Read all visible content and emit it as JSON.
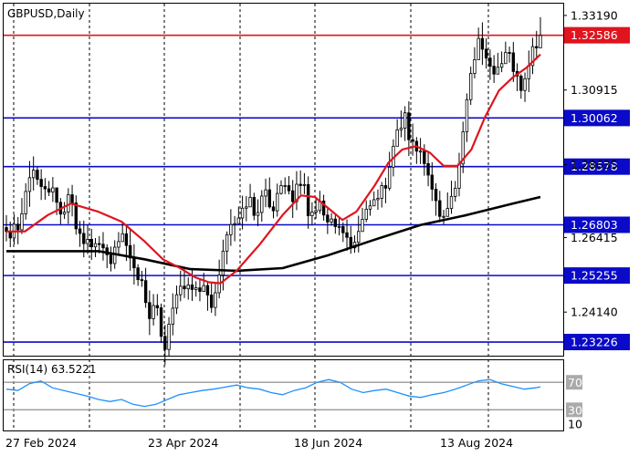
{
  "chart_data": [
    {
      "type": "candlestick",
      "title": "GBPUSD,Daily",
      "ylim": [
        1.2281,
        1.3355
      ],
      "price_ticks": [
        "1.33190",
        "1.30915",
        "1.28635",
        "1.26415",
        "1.24140"
      ],
      "x_labels": [
        "27 Feb 2024",
        "23 Apr 2024",
        "18 Jun 2024",
        "13 Aug 2024"
      ],
      "levels": [
        {
          "value": 1.32586,
          "label": "1.32586",
          "color": "#e0141e"
        },
        {
          "value": 1.30062,
          "label": "1.30062",
          "color": "#0a0ac8"
        },
        {
          "value": 1.28578,
          "label": "1.28578",
          "color": "#0a0ac8"
        },
        {
          "value": 1.26803,
          "label": "1.26803",
          "color": "#0a0ac8"
        },
        {
          "value": 1.25255,
          "label": "1.25255",
          "color": "#0a0ac8"
        },
        {
          "value": 1.23226,
          "label": "1.23226",
          "color": "#0a0ac8"
        }
      ],
      "ma_fast": {
        "color": "#e0141e",
        "points": [
          [
            0,
            1.266
          ],
          [
            8,
            1.266
          ],
          [
            18,
            1.271
          ],
          [
            28,
            1.2745
          ],
          [
            40,
            1.272
          ],
          [
            50,
            1.269
          ],
          [
            60,
            1.263
          ],
          [
            68,
            1.2575
          ],
          [
            75,
            1.255
          ],
          [
            82,
            1.252
          ],
          [
            88,
            1.2505
          ],
          [
            93,
            1.2502
          ],
          [
            100,
            1.254
          ],
          [
            110,
            1.262
          ],
          [
            120,
            1.271
          ],
          [
            128,
            1.277
          ],
          [
            134,
            1.2765
          ],
          [
            140,
            1.273
          ],
          [
            146,
            1.2695
          ],
          [
            152,
            1.272
          ],
          [
            160,
            1.28
          ],
          [
            166,
            1.287
          ],
          [
            172,
            1.291
          ],
          [
            178,
            1.292
          ],
          [
            184,
            1.29
          ],
          [
            190,
            1.286
          ],
          [
            196,
            1.286
          ],
          [
            202,
            1.291
          ],
          [
            208,
            1.301
          ],
          [
            214,
            1.309
          ],
          [
            220,
            1.313
          ],
          [
            226,
            1.316
          ],
          [
            232,
            1.32
          ]
        ]
      },
      "ma_slow": {
        "color": "#000000",
        "points": [
          [
            0,
            1.26
          ],
          [
            20,
            1.26
          ],
          [
            40,
            1.26
          ],
          [
            60,
            1.2575
          ],
          [
            80,
            1.2545
          ],
          [
            100,
            1.254
          ],
          [
            120,
            1.2548
          ],
          [
            140,
            1.2588
          ],
          [
            160,
            1.2635
          ],
          [
            180,
            1.268
          ],
          [
            200,
            1.271
          ],
          [
            220,
            1.2745
          ],
          [
            232,
            1.2765
          ]
        ]
      },
      "candles": [
        [
          1.2672,
          1.266,
          1.271,
          1.263
        ],
        [
          1.266,
          1.264,
          1.269,
          1.2612
        ],
        [
          1.264,
          1.2682,
          1.2712,
          1.262
        ],
        [
          1.2682,
          1.2665,
          1.2704,
          1.2621
        ],
        [
          1.2665,
          1.2714,
          1.2762,
          1.2652
        ],
        [
          1.2714,
          1.2782,
          1.2807,
          1.2696
        ],
        [
          1.2782,
          1.2824,
          1.2875,
          1.2735
        ],
        [
          1.2824,
          1.2847,
          1.2889,
          1.2785
        ],
        [
          1.2847,
          1.2819,
          1.2857,
          1.2802
        ],
        [
          1.2819,
          1.2797,
          1.285,
          1.2756
        ],
        [
          1.2797,
          1.279,
          1.2823,
          1.2757
        ],
        [
          1.279,
          1.278,
          1.2814,
          1.2768
        ],
        [
          1.278,
          1.2793,
          1.2826,
          1.275
        ],
        [
          1.2793,
          1.2749,
          1.2794,
          1.271
        ],
        [
          1.2749,
          1.2713,
          1.2762,
          1.2682
        ],
        [
          1.2713,
          1.2719,
          1.275,
          1.2698
        ],
        [
          1.2719,
          1.2772,
          1.2792,
          1.2683
        ],
        [
          1.2772,
          1.2747,
          1.2802,
          1.2706
        ],
        [
          1.2747,
          1.2668,
          1.277,
          1.265
        ],
        [
          1.2668,
          1.2654,
          1.2692,
          1.2613
        ],
        [
          1.2654,
          1.2623,
          1.2693,
          1.2581
        ],
        [
          1.2623,
          1.2636,
          1.2682,
          1.2591
        ],
        [
          1.2636,
          1.2613,
          1.2668,
          1.2573
        ],
        [
          1.2613,
          1.2623,
          1.264,
          1.2582
        ],
        [
          1.2623,
          1.2621,
          1.2646,
          1.2593
        ],
        [
          1.2621,
          1.261,
          1.2658,
          1.2571
        ],
        [
          1.261,
          1.2589,
          1.2621,
          1.2548
        ],
        [
          1.2589,
          1.2562,
          1.2614,
          1.2538
        ],
        [
          1.2562,
          1.2612,
          1.2633,
          1.2546
        ],
        [
          1.2612,
          1.2629,
          1.2658,
          1.2587
        ],
        [
          1.2629,
          1.2653,
          1.2689,
          1.263
        ],
        [
          1.2653,
          1.2617,
          1.2681,
          1.257
        ],
        [
          1.2617,
          1.2579,
          1.2665,
          1.254
        ],
        [
          1.2579,
          1.2549,
          1.2621,
          1.2498
        ],
        [
          1.2549,
          1.2513,
          1.256,
          1.2494
        ],
        [
          1.2513,
          1.251,
          1.254,
          1.2491
        ],
        [
          1.251,
          1.2443,
          1.2549,
          1.2427
        ],
        [
          1.2443,
          1.2394,
          1.248,
          1.2344
        ],
        [
          1.2394,
          1.2434,
          1.2469,
          1.2373
        ],
        [
          1.2434,
          1.2427,
          1.2469,
          1.2403
        ],
        [
          1.2427,
          1.234,
          1.244,
          1.232
        ],
        [
          1.234,
          1.23,
          1.2375,
          1.2252
        ],
        [
          1.23,
          1.2377,
          1.2399,
          1.2281
        ],
        [
          1.2377,
          1.2426,
          1.2471,
          1.2343
        ],
        [
          1.2426,
          1.2467,
          1.2495,
          1.2408
        ],
        [
          1.2467,
          1.2493,
          1.254,
          1.2447
        ],
        [
          1.2493,
          1.2485,
          1.2545,
          1.2457
        ],
        [
          1.2485,
          1.2497,
          1.252,
          1.2452
        ],
        [
          1.2497,
          1.2483,
          1.2543,
          1.2448
        ],
        [
          1.2483,
          1.2488,
          1.2508,
          1.2461
        ],
        [
          1.2488,
          1.2477,
          1.2515,
          1.2447
        ],
        [
          1.2477,
          1.2495,
          1.2534,
          1.2476
        ],
        [
          1.2495,
          1.2466,
          1.2507,
          1.2418
        ],
        [
          1.2466,
          1.2428,
          1.2502,
          1.2412
        ],
        [
          1.2428,
          1.2473,
          1.2504,
          1.2402
        ],
        [
          1.2473,
          1.2527,
          1.2574,
          1.2456
        ],
        [
          1.2527,
          1.26,
          1.2635,
          1.248
        ],
        [
          1.26,
          1.265,
          1.266,
          1.256
        ],
        [
          1.265,
          1.2681,
          1.2728,
          1.2616
        ],
        [
          1.2681,
          1.2684,
          1.2707,
          1.263
        ],
        [
          1.2684,
          1.2701,
          1.2736,
          1.2687
        ],
        [
          1.2701,
          1.2731,
          1.2769,
          1.2666
        ],
        [
          1.2731,
          1.2735,
          1.2768,
          1.2691
        ],
        [
          1.2735,
          1.2764,
          1.2805,
          1.274
        ],
        [
          1.2764,
          1.2709,
          1.2778,
          1.2694
        ],
        [
          1.2709,
          1.2718,
          1.2758,
          1.2676
        ],
        [
          1.2718,
          1.2768,
          1.2786,
          1.269
        ],
        [
          1.2768,
          1.2787,
          1.2821,
          1.2734
        ],
        [
          1.2787,
          1.2735,
          1.2825,
          1.273
        ],
        [
          1.2735,
          1.2723,
          1.2753,
          1.27
        ],
        [
          1.2723,
          1.2776,
          1.2806,
          1.2705
        ],
        [
          1.2776,
          1.28,
          1.2816,
          1.2772
        ],
        [
          1.28,
          1.28,
          1.2825,
          1.2774
        ],
        [
          1.28,
          1.2784,
          1.2829,
          1.2773
        ],
        [
          1.2784,
          1.2751,
          1.2817,
          1.2701
        ],
        [
          1.2751,
          1.2804,
          1.2844,
          1.2725
        ],
        [
          1.2804,
          1.28,
          1.2846,
          1.2773
        ],
        [
          1.28,
          1.2803,
          1.2838,
          1.2774
        ],
        [
          1.2803,
          1.2708,
          1.2828,
          1.2668
        ],
        [
          1.2708,
          1.2719,
          1.2749,
          1.268
        ],
        [
          1.2719,
          1.2724,
          1.2763,
          1.2699
        ],
        [
          1.2724,
          1.2753,
          1.2784,
          1.2714
        ],
        [
          1.2753,
          1.271,
          1.2772,
          1.2693
        ],
        [
          1.271,
          1.2689,
          1.2734,
          1.2652
        ],
        [
          1.2689,
          1.2698,
          1.2716,
          1.2678
        ],
        [
          1.2698,
          1.2675,
          1.271,
          1.2653
        ],
        [
          1.2675,
          1.2675,
          1.2705,
          1.2648
        ],
        [
          1.2675,
          1.2656,
          1.2688,
          1.2628
        ],
        [
          1.2656,
          1.2642,
          1.2697,
          1.2601
        ],
        [
          1.2642,
          1.261,
          1.2677,
          1.2592
        ],
        [
          1.261,
          1.2627,
          1.2648,
          1.2595
        ],
        [
          1.2627,
          1.266,
          1.2708,
          1.2596
        ],
        [
          1.266,
          1.2697,
          1.2732,
          1.2659
        ],
        [
          1.2697,
          1.2728,
          1.2755,
          1.2688
        ],
        [
          1.2728,
          1.2738,
          1.2756,
          1.2708
        ],
        [
          1.2738,
          1.2757,
          1.2782,
          1.274
        ],
        [
          1.2757,
          1.2761,
          1.2788,
          1.2726
        ],
        [
          1.2761,
          1.28,
          1.2811,
          1.2733
        ],
        [
          1.28,
          1.2792,
          1.2824,
          1.2746
        ],
        [
          1.2792,
          1.2856,
          1.2903,
          1.2784
        ],
        [
          1.2856,
          1.292,
          1.2941,
          1.2828
        ],
        [
          1.292,
          1.297,
          1.3002,
          1.2931
        ],
        [
          1.297,
          1.2975,
          1.3029,
          1.2947
        ],
        [
          1.2975,
          1.3022,
          1.3042,
          1.2936
        ],
        [
          1.3022,
          1.294,
          1.3057,
          1.289
        ],
        [
          1.294,
          1.2935,
          1.2989,
          1.2891
        ],
        [
          1.2935,
          1.2905,
          1.2948,
          1.2866
        ],
        [
          1.2905,
          1.2905,
          1.2945,
          1.2866
        ],
        [
          1.2905,
          1.2867,
          1.2926,
          1.283
        ],
        [
          1.2867,
          1.2832,
          1.2906,
          1.2798
        ],
        [
          1.2832,
          1.2789,
          1.2871,
          1.2753
        ],
        [
          1.2789,
          1.2754,
          1.2807,
          1.2708
        ],
        [
          1.2754,
          1.2706,
          1.2784,
          1.2688
        ],
        [
          1.2706,
          1.2706,
          1.2726,
          1.2682
        ],
        [
          1.2706,
          1.273,
          1.2779,
          1.2705
        ],
        [
          1.273,
          1.2767,
          1.2815,
          1.2714
        ],
        [
          1.2767,
          1.2792,
          1.2814,
          1.2751
        ],
        [
          1.2792,
          1.2866,
          1.29,
          1.2767
        ],
        [
          1.2866,
          1.2964,
          1.2995,
          1.2838
        ],
        [
          1.2964,
          1.3062,
          1.3081,
          1.2933
        ],
        [
          1.3062,
          1.3142,
          1.3163,
          1.3046
        ],
        [
          1.3142,
          1.3184,
          1.3222,
          1.3127
        ],
        [
          1.3184,
          1.3249,
          1.3282,
          1.32
        ],
        [
          1.3249,
          1.3216,
          1.3298,
          1.3168
        ],
        [
          1.3216,
          1.3189,
          1.3249,
          1.3157
        ],
        [
          1.3189,
          1.3164,
          1.3215,
          1.3122
        ],
        [
          1.3164,
          1.314,
          1.3198,
          1.3113
        ],
        [
          1.314,
          1.3161,
          1.3205,
          1.314
        ],
        [
          1.3161,
          1.3172,
          1.3209,
          1.3146
        ],
        [
          1.3172,
          1.3206,
          1.3239,
          1.3188
        ],
        [
          1.3206,
          1.3205,
          1.3224,
          1.3175
        ],
        [
          1.3205,
          1.3148,
          1.3238,
          1.3116
        ],
        [
          1.3148,
          1.3134,
          1.3173,
          1.3088
        ],
        [
          1.3134,
          1.309,
          1.314,
          1.3065
        ],
        [
          1.309,
          1.3126,
          1.3145,
          1.3055
        ],
        [
          1.3126,
          1.3166,
          1.3212,
          1.3085
        ],
        [
          1.3166,
          1.3224,
          1.3251,
          1.314
        ],
        [
          1.3224,
          1.322,
          1.3272,
          1.3184
        ],
        [
          1.322,
          1.3258,
          1.3314,
          1.322
        ]
      ],
      "rsi": {
        "label": "RSI(14) 63.5221",
        "ylim": [
          0,
          100
        ],
        "ticks": [
          70,
          30,
          10
        ],
        "tick_labels": [
          "70",
          "30",
          "10"
        ],
        "values": [
          [
            0,
            60
          ],
          [
            5,
            58
          ],
          [
            10,
            68
          ],
          [
            15,
            72
          ],
          [
            20,
            62
          ],
          [
            25,
            58
          ],
          [
            30,
            54
          ],
          [
            35,
            50
          ],
          [
            40,
            45
          ],
          [
            45,
            42
          ],
          [
            50,
            45
          ],
          [
            55,
            38
          ],
          [
            60,
            35
          ],
          [
            65,
            38
          ],
          [
            70,
            45
          ],
          [
            75,
            52
          ],
          [
            80,
            55
          ],
          [
            85,
            58
          ],
          [
            90,
            60
          ],
          [
            95,
            63
          ],
          [
            100,
            66
          ],
          [
            105,
            62
          ],
          [
            110,
            60
          ],
          [
            115,
            55
          ],
          [
            120,
            52
          ],
          [
            125,
            58
          ],
          [
            130,
            62
          ],
          [
            135,
            70
          ],
          [
            140,
            74
          ],
          [
            145,
            70
          ],
          [
            150,
            60
          ],
          [
            155,
            55
          ],
          [
            160,
            58
          ],
          [
            165,
            60
          ],
          [
            170,
            55
          ],
          [
            175,
            50
          ],
          [
            180,
            48
          ],
          [
            185,
            52
          ],
          [
            190,
            55
          ],
          [
            195,
            60
          ],
          [
            200,
            66
          ],
          [
            205,
            72
          ],
          [
            210,
            74
          ],
          [
            215,
            68
          ],
          [
            220,
            64
          ],
          [
            225,
            60
          ],
          [
            230,
            62
          ],
          [
            232,
            63.5
          ]
        ]
      }
    }
  ]
}
